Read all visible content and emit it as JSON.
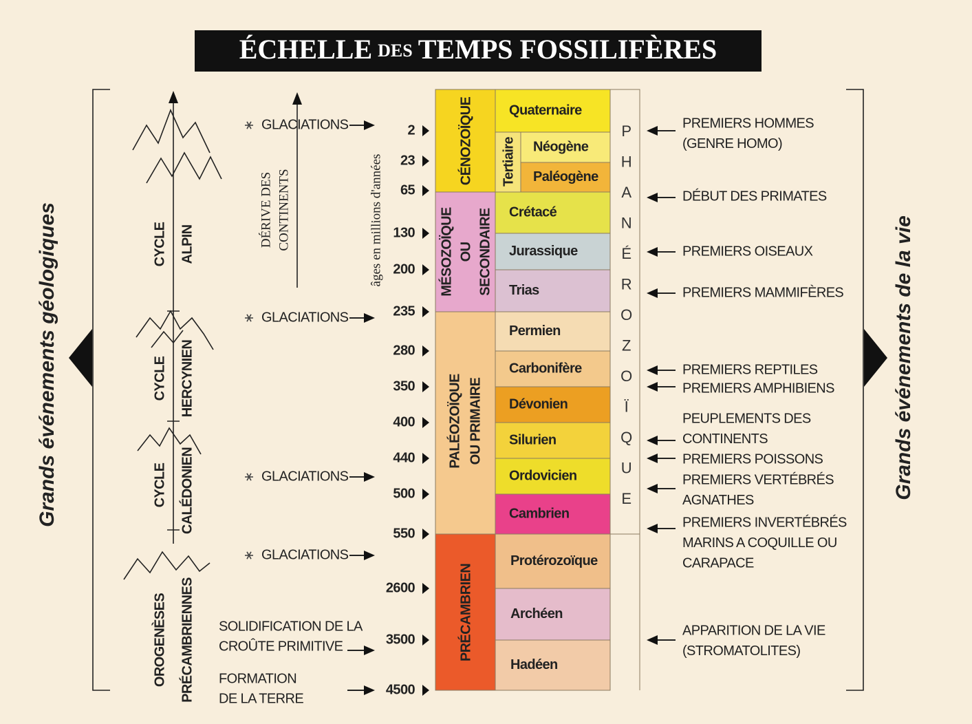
{
  "title": {
    "main": "ÉCHELLE",
    "small": "DES",
    "rest": "TEMPS FOSSILIFÈRES"
  },
  "left_heading": "Grands événements géologiques",
  "right_heading": "Grands événements de la vie",
  "age_axis_label": "âges en millions d'années",
  "ages": [
    2,
    23,
    65,
    130,
    200,
    235,
    280,
    350,
    400,
    440,
    500,
    550,
    2600,
    3500,
    4500
  ],
  "eon": "PHANÉROZOÏQUE",
  "eras": [
    {
      "name": [
        "CÉNOZOÏQUE"
      ]
    },
    {
      "name": [
        "MÉSOZOÏQUE",
        "OU",
        "SECONDAIRE"
      ]
    },
    {
      "name": [
        "PALÉOZOÏQUE",
        "OU PRIMAIRE"
      ]
    },
    {
      "name": [
        "PRÉCAMBRIEN"
      ]
    }
  ],
  "subera": "Tertiaire",
  "periods": [
    "Quaternaire",
    "Néogène",
    "Paléogène",
    "Crétacé",
    "Jurassique",
    "Trias",
    "Permien",
    "Carbonifère",
    "Dévonien",
    "Silurien",
    "Ordovicien",
    "Cambrien",
    "Protérozoïque",
    "Archéen",
    "Hadéen"
  ],
  "cycles": [
    {
      "lines": [
        "CYCLE",
        "ALPIN"
      ]
    },
    {
      "lines": [
        "CYCLE",
        "HERCYNIEN"
      ]
    },
    {
      "lines": [
        "CYCLE",
        "CALÉDONIEN"
      ]
    },
    {
      "lines": [
        "OROGENÈSES",
        "PRÉCAMBRIENNES"
      ]
    }
  ],
  "glaciations": [
    "GLACIATIONS",
    "GLACIATIONS",
    "GLACIATIONS",
    "GLACIATIONS"
  ],
  "drift": [
    "DÉRIVE DES",
    "CONTINENTS"
  ],
  "early_events": [
    {
      "lines": [
        "SOLIDIFICATION DE LA",
        "CROÛTE PRIMITIVE"
      ]
    },
    {
      "lines": [
        "FORMATION",
        "DE LA TERRE"
      ]
    }
  ],
  "life_events": [
    {
      "lines": [
        "PREMIERS HOMMES",
        "(GENRE HOMO)"
      ]
    },
    {
      "lines": [
        "DÉBUT DES PRIMATES"
      ]
    },
    {
      "lines": [
        "PREMIERS OISEAUX"
      ]
    },
    {
      "lines": [
        "PREMIERS MAMMIFÈRES"
      ]
    },
    {
      "lines": [
        "PREMIERS REPTILES"
      ]
    },
    {
      "lines": [
        "PREMIERS AMPHIBIENS"
      ]
    },
    {
      "lines": [
        "PEUPLEMENTS DES",
        "CONTINENTS"
      ]
    },
    {
      "lines": [
        "PREMIERS POISSONS"
      ]
    },
    {
      "lines": [
        "PREMIERS VERTÉBRÉS",
        "AGNATHES"
      ]
    },
    {
      "lines": [
        "PREMIERS INVERTÉBRÉS",
        "MARINS A COQUILLE OU",
        "CARAPACE"
      ]
    },
    {
      "lines": [
        "APPARITION DE LA VIE",
        "(STROMATOLITES)"
      ]
    }
  ]
}
